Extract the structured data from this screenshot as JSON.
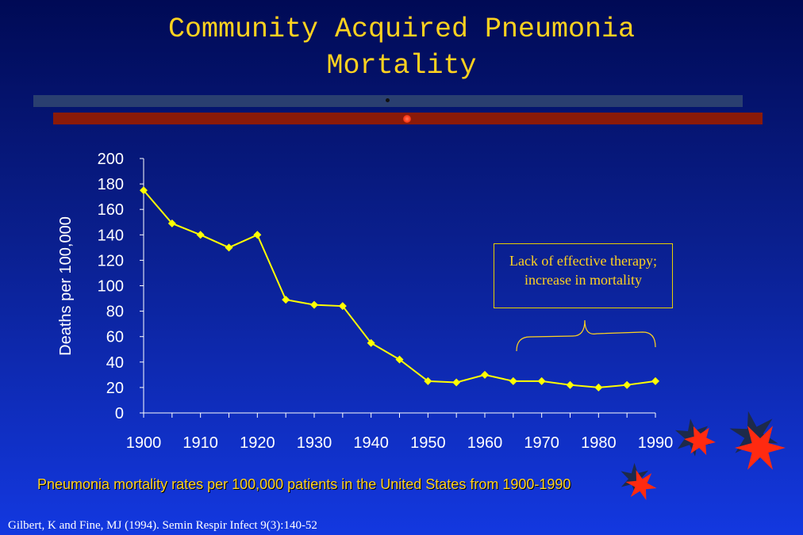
{
  "title_line1": "Community Acquired Pneumonia",
  "title_line2": "Mortality",
  "caption": "Pneumonia mortality rates per 100,000 patients in the United States from 1900-1990",
  "citation": "Gilbert, K and Fine, MJ (1994). Semin Respir Infect 9(3):140-52",
  "annotation": "Lack of effective therapy; increase in mortality",
  "colors": {
    "line": "#ffff00",
    "text": "#ffd21f",
    "axis": "#ffffff"
  },
  "chart_data": {
    "type": "line",
    "title": "",
    "xlabel": "",
    "ylabel": "Deaths per 100,000",
    "x": [
      1900,
      1905,
      1910,
      1915,
      1920,
      1925,
      1930,
      1935,
      1940,
      1945,
      1950,
      1955,
      1960,
      1965,
      1970,
      1975,
      1980,
      1985,
      1990
    ],
    "values": [
      175,
      149,
      140,
      130,
      140,
      89,
      85,
      84,
      55,
      42,
      25,
      24,
      30,
      25,
      25,
      22,
      20,
      22,
      25
    ],
    "xticks": [
      "1900",
      "1910",
      "1920",
      "1930",
      "1940",
      "1950",
      "1960",
      "1970",
      "1980",
      "1990"
    ],
    "yticks": [
      "0",
      "20",
      "40",
      "60",
      "80",
      "100",
      "120",
      "140",
      "160",
      "180",
      "200"
    ],
    "xlim": [
      1900,
      1990
    ],
    "ylim": [
      0,
      200
    ],
    "grid": false,
    "legend": "none"
  }
}
